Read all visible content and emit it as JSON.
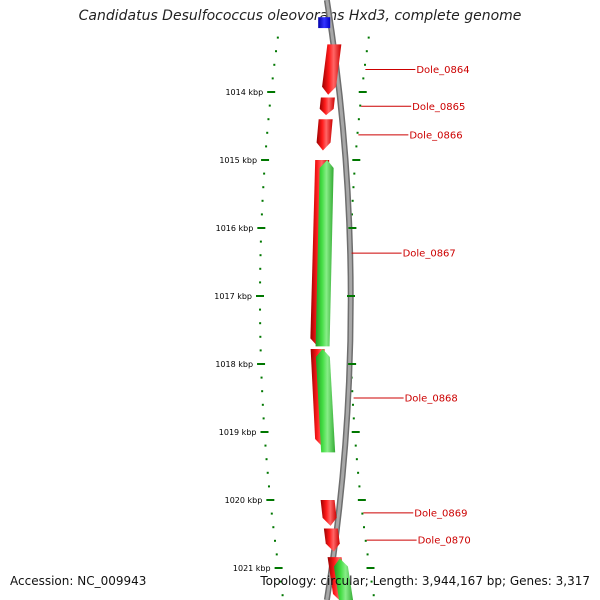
{
  "title": "Candidatus Desulfococcus oleovorans Hxd3, complete genome",
  "footer": {
    "accession": "Accession: NC_009943",
    "summary": "Topology: circular; Length: 3,944,167 bp; Genes: 3,317"
  },
  "colors": {
    "backbone": "#8c8c8c",
    "reverse_strand_gene": "#ee0000",
    "forward_strand_gene": "#33cc33",
    "rna_feature": "#0000dd",
    "tick": "#007700",
    "label": "#cc0000"
  },
  "scale": {
    "unit": "kbp",
    "ticks": [
      {
        "kbp": 1014,
        "label": "1014 kbp"
      },
      {
        "kbp": 1015,
        "label": "1015 kbp"
      },
      {
        "kbp": 1016,
        "label": "1016 kbp"
      },
      {
        "kbp": 1017,
        "label": "1017 kbp"
      },
      {
        "kbp": 1018,
        "label": "1018 kbp"
      },
      {
        "kbp": 1019,
        "label": "1019 kbp"
      },
      {
        "kbp": 1020,
        "label": "1020 kbp"
      },
      {
        "kbp": 1021,
        "label": "1021 kbp"
      }
    ]
  },
  "genes": [
    {
      "name": "Dole_0864",
      "strand": "reverse",
      "start_kbp": 1013.3,
      "end_kbp": 1014.04
    },
    {
      "name": "Dole_0865",
      "strand": "reverse",
      "start_kbp": 1014.08,
      "end_kbp": 1014.34
    },
    {
      "name": "Dole_0866",
      "strand": "reverse",
      "start_kbp": 1014.4,
      "end_kbp": 1014.86
    },
    {
      "name": "Dole_0867",
      "strand": "reverse",
      "start_kbp": 1015.0,
      "end_kbp": 1017.74
    },
    {
      "name": "Dole_0868",
      "strand": "reverse",
      "start_kbp": 1017.78,
      "end_kbp": 1019.22
    },
    {
      "name": "Dole_0869",
      "strand": "reverse",
      "start_kbp": 1020.0,
      "end_kbp": 1020.38
    },
    {
      "name": "Dole_0870",
      "strand": "reverse",
      "start_kbp": 1020.42,
      "end_kbp": 1020.76
    }
  ],
  "unlabeled_features": [
    {
      "strand": "reverse",
      "type": "gene",
      "start_kbp": 1020.84,
      "end_kbp": 1021.5
    },
    {
      "strand": "forward",
      "type": "gene",
      "start_kbp": 1015.0,
      "end_kbp": 1017.74
    },
    {
      "strand": "forward",
      "type": "gene",
      "start_kbp": 1017.78,
      "end_kbp": 1019.3
    },
    {
      "strand": "forward",
      "type": "gene",
      "start_kbp": 1020.86,
      "end_kbp": 1021.5
    },
    {
      "strand": "forward",
      "type": "rna",
      "start_kbp": 1012.9,
      "end_kbp": 1013.06
    }
  ]
}
